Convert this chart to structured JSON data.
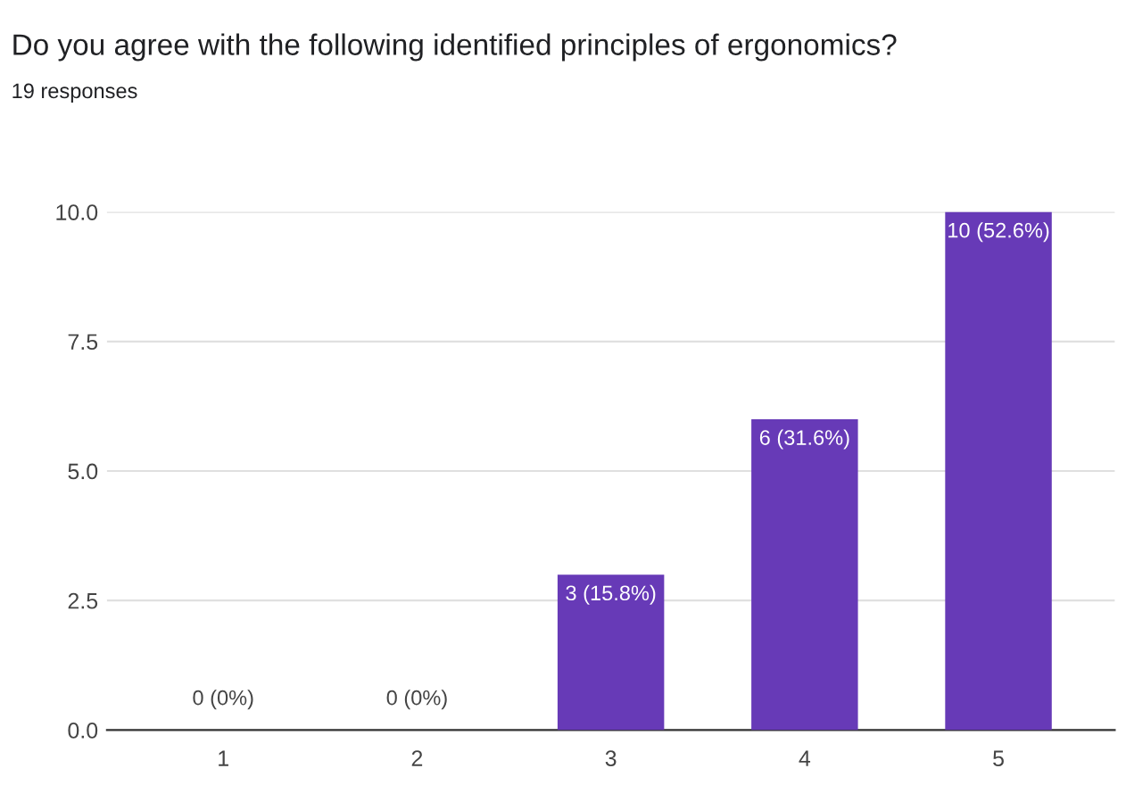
{
  "chart_data": {
    "type": "bar",
    "title": "Do you agree with the following identified principles of ergonomics?",
    "subtitle": "19 responses",
    "categories": [
      "1",
      "2",
      "3",
      "4",
      "5"
    ],
    "values": [
      0,
      0,
      3,
      6,
      10
    ],
    "value_labels": [
      "0 (0%)",
      "0 (0%)",
      "3 (15.8%)",
      "6 (31.6%)",
      "10 (52.6%)"
    ],
    "color": "#673ab7",
    "ylim": [
      0,
      10
    ],
    "yticks": [
      {
        "value": 0,
        "label": "0.0"
      },
      {
        "value": 2.5,
        "label": "2.5"
      },
      {
        "value": 5,
        "label": "5.0"
      },
      {
        "value": 7.5,
        "label": "7.5"
      },
      {
        "value": 10,
        "label": "10.0"
      }
    ],
    "grid": "y",
    "legend": false
  }
}
